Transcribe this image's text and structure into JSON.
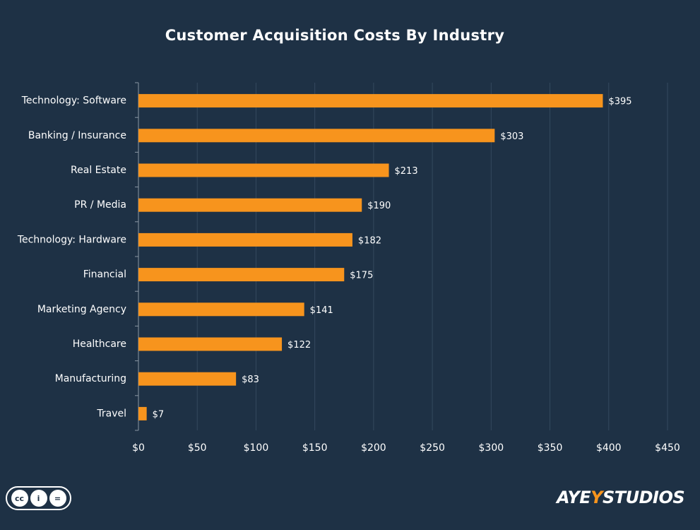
{
  "chart_data": {
    "type": "bar",
    "orientation": "horizontal",
    "title": "Customer Acquisition Costs By Industry",
    "categories": [
      "Technology: Software",
      "Banking / Insurance",
      "Real Estate",
      "PR / Media",
      "Technology: Hardware",
      "Financial",
      "Marketing Agency",
      "Healthcare",
      "Manufacturing",
      "Travel"
    ],
    "values": [
      395,
      303,
      213,
      190,
      182,
      175,
      141,
      122,
      83,
      7
    ],
    "data_labels": [
      "$395",
      "$303",
      "$213",
      "$190",
      "$182",
      "$175",
      "$141",
      "$122",
      "$83",
      "$7"
    ],
    "x_ticks": [
      "$0",
      "$50",
      "$100",
      "$150",
      "$200",
      "$250",
      "$300",
      "$350",
      "$400",
      "$450"
    ],
    "xlim": [
      0,
      450
    ],
    "xlabel": "",
    "ylabel": "",
    "grid": "vertical",
    "legend": "none",
    "colors": {
      "bar": "#f7941d",
      "background": "#1e3145",
      "text": "#ffffff",
      "grid": "#34495e"
    }
  },
  "footer": {
    "license_icons": [
      "cc-icon",
      "by-icon",
      "nd-icon"
    ],
    "license_text": [
      "cc",
      "i",
      "="
    ],
    "brand_prefix": "AYE",
    "brand_accent": "Y",
    "brand_suffix": "STUDIOS"
  }
}
